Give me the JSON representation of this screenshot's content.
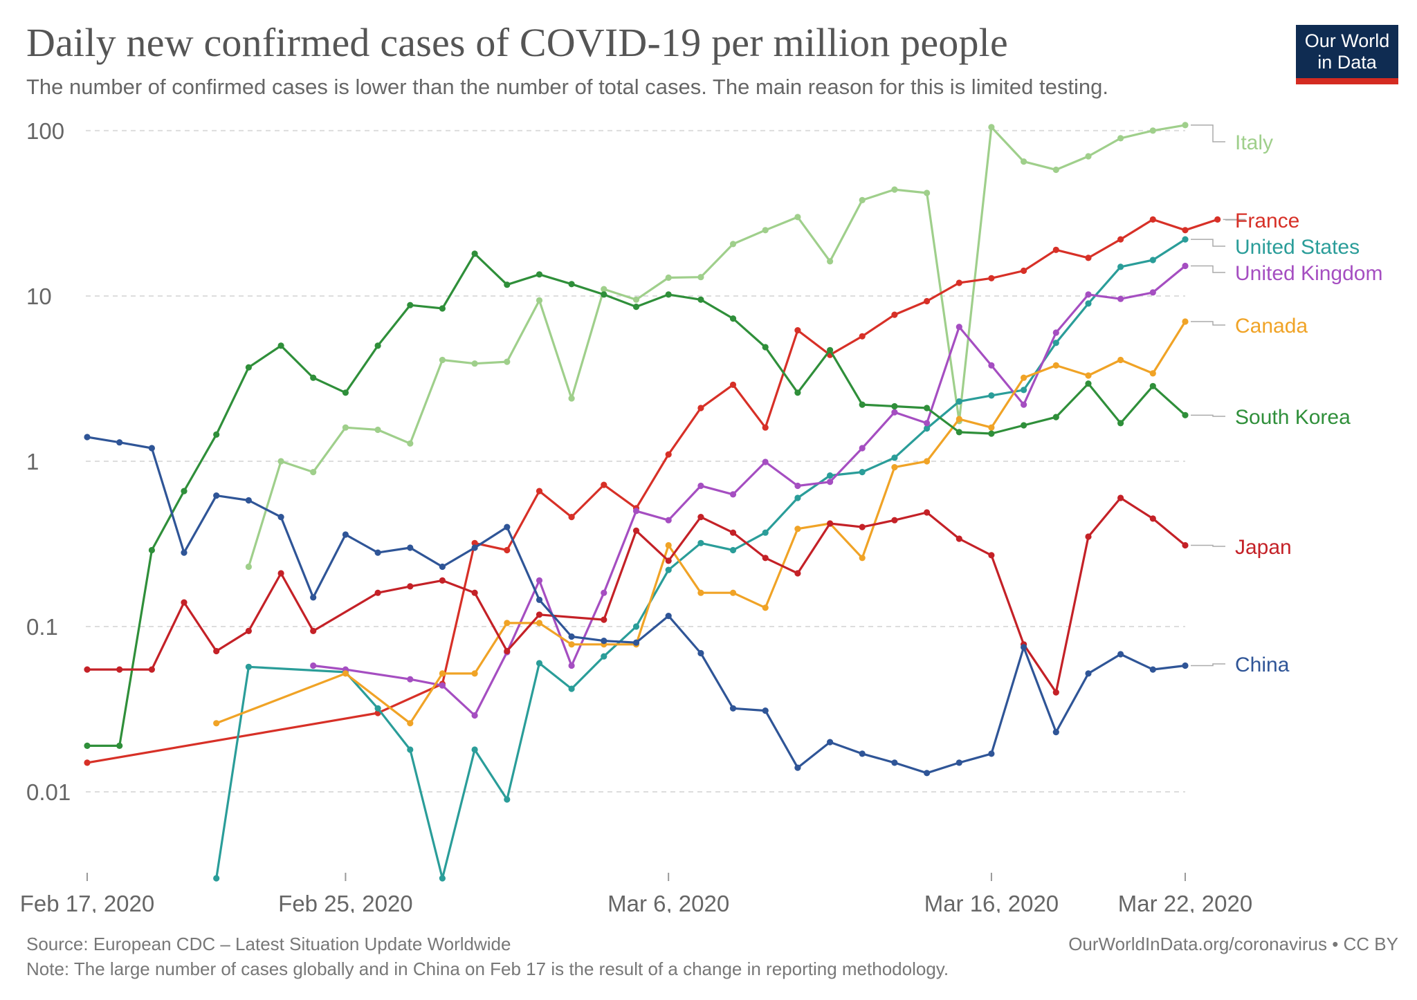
{
  "title": "Daily new confirmed cases of COVID-19 per million people",
  "subtitle": "The number of confirmed cases is lower than the number of total cases. The main reason for this is limited testing.",
  "logo": {
    "line1": "Our World",
    "line2": "in Data",
    "bg_color": "#0f2c52",
    "bar_color": "#d42b21"
  },
  "footer": {
    "source": "Source: European CDC – Latest Situation Update Worldwide",
    "url": "OurWorldInData.org/coronavirus • CC BY",
    "note": "Note: The large number of cases globally and in China on Feb 17 is the result of a change in reporting methodology."
  },
  "chart_data": {
    "type": "line",
    "title": "Daily new confirmed cases of COVID-19 per million people",
    "xlabel": "",
    "ylabel": "",
    "y_scale": "log",
    "ylim": [
      0.003,
      120
    ],
    "xlim": [
      "2020-02-17",
      "2020-03-22"
    ],
    "grid": true,
    "legend": "right (labels at line ends)",
    "y_ticks": [
      {
        "value": 0.01,
        "label": "0.01"
      },
      {
        "value": 0.1,
        "label": "0.1"
      },
      {
        "value": 1,
        "label": "1"
      },
      {
        "value": 10,
        "label": "10"
      },
      {
        "value": 100,
        "label": "100"
      }
    ],
    "x_ticks": [
      {
        "date": "2020-02-17",
        "label": "Feb 17, 2020"
      },
      {
        "date": "2020-02-25",
        "label": "Feb 25, 2020"
      },
      {
        "date": "2020-03-06",
        "label": "Mar 6, 2020"
      },
      {
        "date": "2020-03-16",
        "label": "Mar 16, 2020"
      },
      {
        "date": "2020-03-22",
        "label": "Mar 22, 2020"
      }
    ],
    "series": [
      {
        "name": "Italy",
        "color": "#9fcf8b",
        "points": [
          [
            "2020-02-22",
            0.23
          ],
          [
            "2020-02-23",
            1.0
          ],
          [
            "2020-02-24",
            0.86
          ],
          [
            "2020-02-25",
            1.6
          ],
          [
            "2020-02-26",
            1.55
          ],
          [
            "2020-02-27",
            1.28
          ],
          [
            "2020-02-28",
            4.1
          ],
          [
            "2020-02-29",
            3.9
          ],
          [
            "2020-03-01",
            4.0
          ],
          [
            "2020-03-02",
            9.4
          ],
          [
            "2020-03-03",
            2.4
          ],
          [
            "2020-03-04",
            11.0
          ],
          [
            "2020-03-05",
            9.5
          ],
          [
            "2020-03-06",
            12.9
          ],
          [
            "2020-03-07",
            13.0
          ],
          [
            "2020-03-08",
            20.6
          ],
          [
            "2020-03-09",
            25.0
          ],
          [
            "2020-03-10",
            30.0
          ],
          [
            "2020-03-11",
            16.2
          ],
          [
            "2020-03-12",
            38.0
          ],
          [
            "2020-03-13",
            44.0
          ],
          [
            "2020-03-14",
            42.0
          ],
          [
            "2020-03-15",
            1.75
          ],
          [
            "2020-03-16",
            105.0
          ],
          [
            "2020-03-17",
            65.0
          ],
          [
            "2020-03-18",
            58.0
          ],
          [
            "2020-03-19",
            70.0
          ],
          [
            "2020-03-20",
            90.0
          ],
          [
            "2020-03-21",
            100.0
          ],
          [
            "2020-03-22",
            108.0
          ]
        ]
      },
      {
        "name": "France",
        "color": "#d73027",
        "points": [
          [
            "2020-02-17",
            0.015
          ],
          [
            "2020-02-26",
            0.03
          ],
          [
            "2020-02-28",
            0.045
          ],
          [
            "2020-02-29",
            0.32
          ],
          [
            "2020-03-01",
            0.29
          ],
          [
            "2020-03-02",
            0.66
          ],
          [
            "2020-03-03",
            0.46
          ],
          [
            "2020-03-04",
            0.72
          ],
          [
            "2020-03-05",
            0.52
          ],
          [
            "2020-03-06",
            1.1
          ],
          [
            "2020-03-07",
            2.1
          ],
          [
            "2020-03-08",
            2.9
          ],
          [
            "2020-03-09",
            1.6
          ],
          [
            "2020-03-10",
            6.2
          ],
          [
            "2020-03-11",
            4.4
          ],
          [
            "2020-03-12",
            5.7
          ],
          [
            "2020-03-13",
            7.7
          ],
          [
            "2020-03-14",
            9.3
          ],
          [
            "2020-03-15",
            12.0
          ],
          [
            "2020-03-16",
            12.8
          ],
          [
            "2020-03-17",
            14.2
          ],
          [
            "2020-03-18",
            19.0
          ],
          [
            "2020-03-19",
            17.0
          ],
          [
            "2020-03-20",
            22.0
          ],
          [
            "2020-03-21",
            29.0
          ],
          [
            "2020-03-22",
            25.0
          ],
          [
            "2020-03-23",
            29.0
          ]
        ]
      },
      {
        "name": "United States",
        "color": "#2a9d99",
        "points": [
          [
            "2020-02-21",
            0.003
          ],
          [
            "2020-02-22",
            0.057
          ],
          [
            "2020-02-25",
            0.053
          ],
          [
            "2020-02-26",
            0.032
          ],
          [
            "2020-02-27",
            0.018
          ],
          [
            "2020-02-28",
            0.003
          ],
          [
            "2020-02-29",
            0.018
          ],
          [
            "2020-03-01",
            0.009
          ],
          [
            "2020-03-02",
            0.06
          ],
          [
            "2020-03-03",
            0.042
          ],
          [
            "2020-03-04",
            0.066
          ],
          [
            "2020-03-05",
            0.1
          ],
          [
            "2020-03-06",
            0.22
          ],
          [
            "2020-03-07",
            0.32
          ],
          [
            "2020-03-08",
            0.29
          ],
          [
            "2020-03-09",
            0.37
          ],
          [
            "2020-03-10",
            0.6
          ],
          [
            "2020-03-11",
            0.82
          ],
          [
            "2020-03-12",
            0.86
          ],
          [
            "2020-03-13",
            1.05
          ],
          [
            "2020-03-14",
            1.58
          ],
          [
            "2020-03-15",
            2.3
          ],
          [
            "2020-03-16",
            2.5
          ],
          [
            "2020-03-17",
            2.7
          ],
          [
            "2020-03-18",
            5.2
          ],
          [
            "2020-03-19",
            9.0
          ],
          [
            "2020-03-20",
            15.0
          ],
          [
            "2020-03-21",
            16.5
          ],
          [
            "2020-03-22",
            22.0
          ]
        ]
      },
      {
        "name": "United Kingdom",
        "color": "#a54ec1",
        "points": [
          [
            "2020-02-24",
            0.058
          ],
          [
            "2020-02-25",
            0.055
          ],
          [
            "2020-02-27",
            0.048
          ],
          [
            "2020-02-28",
            0.044
          ],
          [
            "2020-02-29",
            0.029
          ],
          [
            "2020-03-01",
            0.07
          ],
          [
            "2020-03-02",
            0.19
          ],
          [
            "2020-03-03",
            0.058
          ],
          [
            "2020-03-04",
            0.16
          ],
          [
            "2020-03-05",
            0.5
          ],
          [
            "2020-03-06",
            0.44
          ],
          [
            "2020-03-07",
            0.71
          ],
          [
            "2020-03-08",
            0.63
          ],
          [
            "2020-03-09",
            0.99
          ],
          [
            "2020-03-10",
            0.71
          ],
          [
            "2020-03-11",
            0.75
          ],
          [
            "2020-03-12",
            1.2
          ],
          [
            "2020-03-13",
            1.98
          ],
          [
            "2020-03-14",
            1.7
          ],
          [
            "2020-03-15",
            6.5
          ],
          [
            "2020-03-16",
            3.8
          ],
          [
            "2020-03-17",
            2.2
          ],
          [
            "2020-03-18",
            6.0
          ],
          [
            "2020-03-19",
            10.2
          ],
          [
            "2020-03-20",
            9.6
          ],
          [
            "2020-03-21",
            10.5
          ],
          [
            "2020-03-22",
            15.2
          ]
        ]
      },
      {
        "name": "Canada",
        "color": "#f0a326",
        "points": [
          [
            "2020-02-21",
            0.026
          ],
          [
            "2020-02-25",
            0.052
          ],
          [
            "2020-02-27",
            0.026
          ],
          [
            "2020-02-28",
            0.052
          ],
          [
            "2020-02-29",
            0.052
          ],
          [
            "2020-03-01",
            0.105
          ],
          [
            "2020-03-02",
            0.105
          ],
          [
            "2020-03-03",
            0.078
          ],
          [
            "2020-03-04",
            0.078
          ],
          [
            "2020-03-05",
            0.078
          ],
          [
            "2020-03-06",
            0.31
          ],
          [
            "2020-03-07",
            0.16
          ],
          [
            "2020-03-08",
            0.16
          ],
          [
            "2020-03-09",
            0.13
          ],
          [
            "2020-03-10",
            0.39
          ],
          [
            "2020-03-11",
            0.42
          ],
          [
            "2020-03-12",
            0.26
          ],
          [
            "2020-03-13",
            0.92
          ],
          [
            "2020-03-14",
            1.0
          ],
          [
            "2020-03-15",
            1.8
          ],
          [
            "2020-03-16",
            1.6
          ],
          [
            "2020-03-17",
            3.2
          ],
          [
            "2020-03-18",
            3.8
          ],
          [
            "2020-03-19",
            3.3
          ],
          [
            "2020-03-20",
            4.1
          ],
          [
            "2020-03-21",
            3.4
          ],
          [
            "2020-03-22",
            7.0
          ]
        ]
      },
      {
        "name": "South Korea",
        "color": "#2f8f3a",
        "points": [
          [
            "2020-02-17",
            0.019
          ],
          [
            "2020-02-18",
            0.019
          ],
          [
            "2020-02-19",
            0.29
          ],
          [
            "2020-02-20",
            0.66
          ],
          [
            "2020-02-21",
            1.45
          ],
          [
            "2020-02-22",
            3.7
          ],
          [
            "2020-02-23",
            5.0
          ],
          [
            "2020-02-24",
            3.2
          ],
          [
            "2020-02-25",
            2.6
          ],
          [
            "2020-02-26",
            5.0
          ],
          [
            "2020-02-27",
            8.8
          ],
          [
            "2020-02-28",
            8.4
          ],
          [
            "2020-02-29",
            18.0
          ],
          [
            "2020-03-01",
            11.7
          ],
          [
            "2020-03-02",
            13.5
          ],
          [
            "2020-03-03",
            11.8
          ],
          [
            "2020-03-04",
            10.2
          ],
          [
            "2020-03-05",
            8.6
          ],
          [
            "2020-03-06",
            10.2
          ],
          [
            "2020-03-07",
            9.5
          ],
          [
            "2020-03-08",
            7.3
          ],
          [
            "2020-03-09",
            4.9
          ],
          [
            "2020-03-10",
            2.6
          ],
          [
            "2020-03-11",
            4.7
          ],
          [
            "2020-03-12",
            2.2
          ],
          [
            "2020-03-13",
            2.15
          ],
          [
            "2020-03-14",
            2.1
          ],
          [
            "2020-03-15",
            1.5
          ],
          [
            "2020-03-16",
            1.47
          ],
          [
            "2020-03-17",
            1.65
          ],
          [
            "2020-03-18",
            1.85
          ],
          [
            "2020-03-19",
            2.95
          ],
          [
            "2020-03-20",
            1.7
          ],
          [
            "2020-03-21",
            2.85
          ],
          [
            "2020-03-22",
            1.9
          ]
        ]
      },
      {
        "name": "Japan",
        "color": "#c42127",
        "points": [
          [
            "2020-02-17",
            0.055
          ],
          [
            "2020-02-18",
            0.055
          ],
          [
            "2020-02-19",
            0.055
          ],
          [
            "2020-02-20",
            0.14
          ],
          [
            "2020-02-21",
            0.071
          ],
          [
            "2020-02-22",
            0.094
          ],
          [
            "2020-02-23",
            0.21
          ],
          [
            "2020-02-24",
            0.094
          ],
          [
            "2020-02-26",
            0.16
          ],
          [
            "2020-02-27",
            0.175
          ],
          [
            "2020-02-28",
            0.19
          ],
          [
            "2020-02-29",
            0.16
          ],
          [
            "2020-03-01",
            0.071
          ],
          [
            "2020-03-02",
            0.118
          ],
          [
            "2020-03-04",
            0.11
          ],
          [
            "2020-03-05",
            0.38
          ],
          [
            "2020-03-06",
            0.25
          ],
          [
            "2020-03-07",
            0.46
          ],
          [
            "2020-03-08",
            0.37
          ],
          [
            "2020-03-09",
            0.26
          ],
          [
            "2020-03-10",
            0.21
          ],
          [
            "2020-03-11",
            0.42
          ],
          [
            "2020-03-12",
            0.4
          ],
          [
            "2020-03-13",
            0.44
          ],
          [
            "2020-03-14",
            0.49
          ],
          [
            "2020-03-15",
            0.34
          ],
          [
            "2020-03-16",
            0.27
          ],
          [
            "2020-03-17",
            0.078
          ],
          [
            "2020-03-18",
            0.04
          ],
          [
            "2020-03-19",
            0.35
          ],
          [
            "2020-03-20",
            0.6
          ],
          [
            "2020-03-21",
            0.45
          ],
          [
            "2020-03-22",
            0.31
          ]
        ]
      },
      {
        "name": "China",
        "color": "#2f5597",
        "points": [
          [
            "2020-02-17",
            1.4
          ],
          [
            "2020-02-18",
            1.3
          ],
          [
            "2020-02-19",
            1.2
          ],
          [
            "2020-02-20",
            0.28
          ],
          [
            "2020-02-21",
            0.62
          ],
          [
            "2020-02-22",
            0.58
          ],
          [
            "2020-02-23",
            0.46
          ],
          [
            "2020-02-24",
            0.15
          ],
          [
            "2020-02-25",
            0.36
          ],
          [
            "2020-02-26",
            0.28
          ],
          [
            "2020-02-27",
            0.3
          ],
          [
            "2020-02-28",
            0.23
          ],
          [
            "2020-02-29",
            0.3
          ],
          [
            "2020-03-01",
            0.4
          ],
          [
            "2020-03-02",
            0.145
          ],
          [
            "2020-03-03",
            0.087
          ],
          [
            "2020-03-04",
            0.082
          ],
          [
            "2020-03-05",
            0.08
          ],
          [
            "2020-03-06",
            0.116
          ],
          [
            "2020-03-07",
            0.069
          ],
          [
            "2020-03-08",
            0.032
          ],
          [
            "2020-03-09",
            0.031
          ],
          [
            "2020-03-10",
            0.014
          ],
          [
            "2020-03-11",
            0.02
          ],
          [
            "2020-03-12",
            0.017
          ],
          [
            "2020-03-13",
            0.015
          ],
          [
            "2020-03-14",
            0.013
          ],
          [
            "2020-03-15",
            0.015
          ],
          [
            "2020-03-16",
            0.017
          ],
          [
            "2020-03-17",
            0.075
          ],
          [
            "2020-03-18",
            0.023
          ],
          [
            "2020-03-19",
            0.052
          ],
          [
            "2020-03-20",
            0.068
          ],
          [
            "2020-03-21",
            0.055
          ],
          [
            "2020-03-22",
            0.058
          ]
        ]
      }
    ]
  }
}
